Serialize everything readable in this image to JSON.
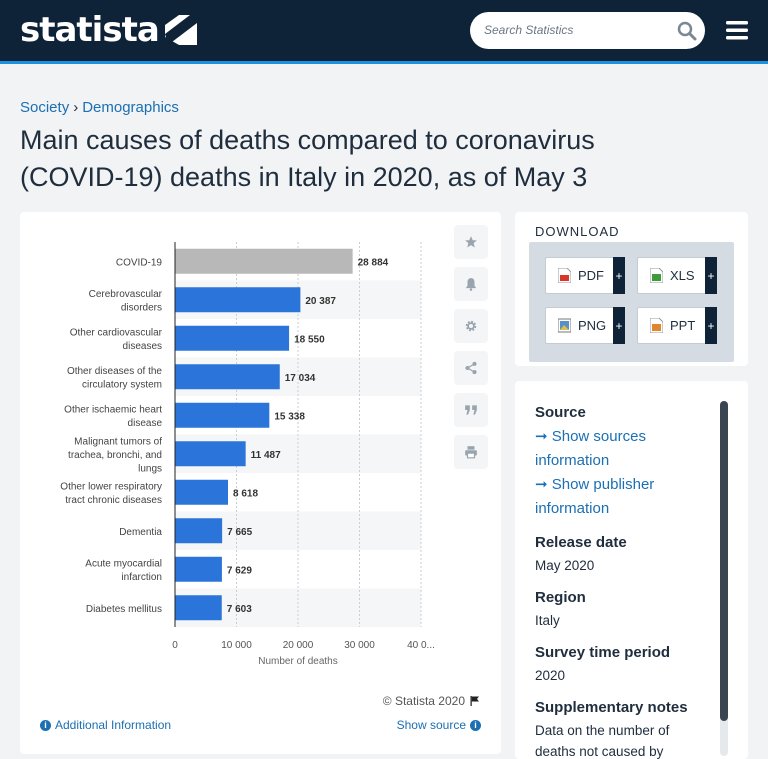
{
  "header": {
    "logo_text": "statista",
    "search_placeholder": "Search Statistics"
  },
  "breadcrumb": {
    "items": [
      "Society",
      "Demographics"
    ],
    "separator": "›"
  },
  "page_title_line1": "Main causes of deaths compared to coronavirus",
  "page_title_line2": "(COVID-19) deaths in Italy in 2020, as of May 3",
  "chart_data": {
    "type": "bar",
    "orientation": "horizontal",
    "categories": [
      [
        "COVID-19"
      ],
      [
        "Cerebrovascular",
        "disorders"
      ],
      [
        "Other cardiovascular",
        "diseases"
      ],
      [
        "Other diseases of the",
        "circulatory system"
      ],
      [
        "Other ischaemic heart",
        "disease"
      ],
      [
        "Malignant tumors of",
        "trachea, bronchi, and",
        "lungs"
      ],
      [
        "Other lower respiratory",
        "tract chronic diseases"
      ],
      [
        "Dementia"
      ],
      [
        "Acute myocardial",
        "infarction"
      ],
      [
        "Diabetes mellitus"
      ]
    ],
    "values": [
      28884,
      20387,
      18550,
      17034,
      15338,
      11487,
      8618,
      7665,
      7629,
      7603
    ],
    "value_labels": [
      "28 884",
      "20 387",
      "18 550",
      "17 034",
      "15 338",
      "11 487",
      "8 618",
      "7 665",
      "7 629",
      "7 603"
    ],
    "highlight_color": "#b8b8b8",
    "bar_color": "#2b74d9",
    "xlim": [
      0,
      40000
    ],
    "x_ticks": [
      0,
      10000,
      20000,
      30000,
      40000
    ],
    "x_tick_labels": [
      "0",
      "10 000",
      "20 000",
      "30 000",
      "40 0..."
    ],
    "xlabel": "Number of deaths",
    "title": "",
    "grid": "vertical-dashed"
  },
  "chart_footer": {
    "copyright": "© Statista 2020",
    "additional_info": "Additional Information",
    "show_source": "Show source"
  },
  "download": {
    "title": "DOWNLOAD",
    "formats": [
      "PDF",
      "XLS",
      "PNG",
      "PPT"
    ],
    "plus": "+"
  },
  "details": {
    "source_title": "Source",
    "source_link1": "➞ Show sources information",
    "source_link2": "➞ Show publisher information",
    "release_title": "Release date",
    "release_value": "May 2020",
    "region_title": "Region",
    "region_value": "Italy",
    "period_title": "Survey time period",
    "period_value": "2020",
    "notes_title": "Supplementary notes",
    "notes_value": "Data on the number of deaths not caused by"
  }
}
